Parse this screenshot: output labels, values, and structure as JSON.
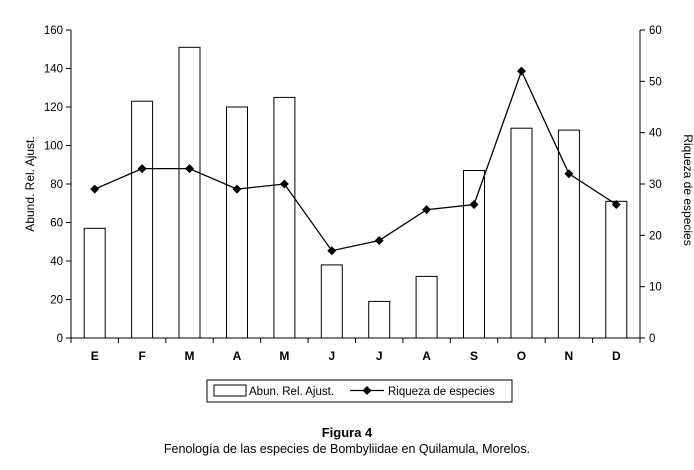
{
  "chart_data": {
    "type": "bar+line",
    "categories": [
      "E",
      "F",
      "M",
      "A",
      "M",
      "J",
      "J",
      "A",
      "S",
      "O",
      "N",
      "D"
    ],
    "series": [
      {
        "name": "Abun. Rel. Ajust.",
        "type": "bar",
        "axis": "left",
        "values": [
          57,
          123,
          151,
          120,
          125,
          38,
          19,
          32,
          87,
          109,
          108,
          71
        ]
      },
      {
        "name": "Riqueza de especies",
        "type": "line",
        "axis": "right",
        "marker": "diamond",
        "values": [
          29,
          33,
          33,
          29,
          30,
          17,
          19,
          25,
          26,
          52,
          32,
          26
        ]
      }
    ],
    "ylabel_left": "Abund. Rel. Ajust.",
    "ylabel_right": "Riqueza de especies",
    "ylim_left": [
      0,
      160
    ],
    "ylim_right": [
      0,
      60
    ],
    "yticks_left": [
      "0",
      "20",
      "40",
      "60",
      "80",
      "100",
      "120",
      "140",
      "160"
    ],
    "yticks_right": [
      "0",
      "10",
      "20",
      "30",
      "40",
      "50",
      "60"
    ],
    "grid": false,
    "legend_placement": "bottom"
  },
  "caption": {
    "title": "Figura 4",
    "subtitle": "Fenología de las especies de Bombyliidae en Quilamula, Morelos."
  },
  "colors": {
    "bar_fill": "#ffffff",
    "stroke": "#000000"
  }
}
